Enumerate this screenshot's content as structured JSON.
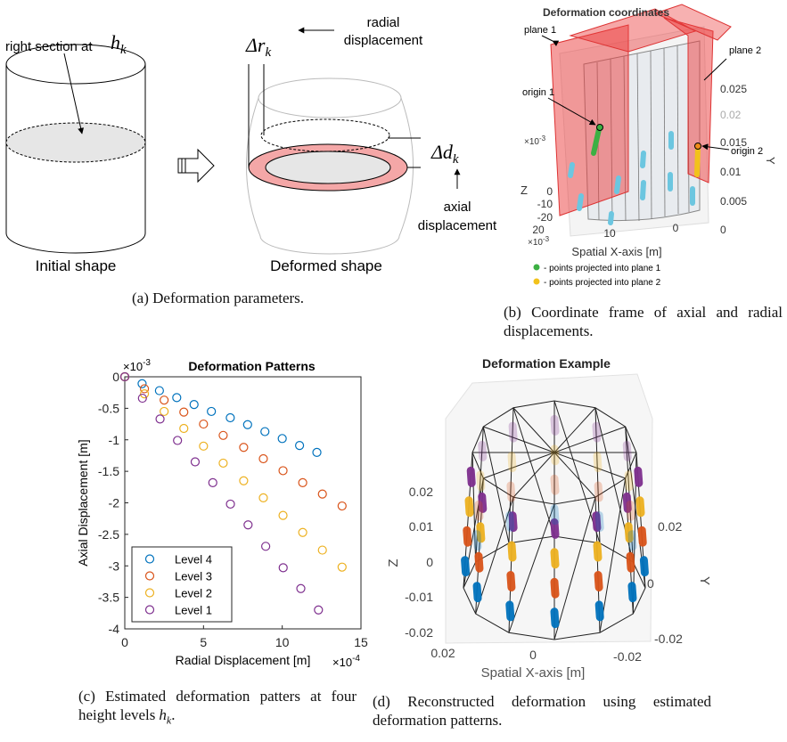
{
  "panel_a": {
    "pointer_label": "right section at",
    "section_height": {
      "base": "h",
      "sub": "k"
    },
    "radial_symbol": {
      "base": "Δr",
      "sub": "k"
    },
    "radial_label": [
      "radial",
      "displacement"
    ],
    "axial_symbol": {
      "base": "Δd",
      "sub": "k"
    },
    "axial_label": [
      "axial",
      "displacement"
    ],
    "initial_label": "Initial shape",
    "deformed_label": "Deformed shape",
    "caption": "(a) Deformation parameters."
  },
  "panel_b": {
    "title": "Deformation coordinates",
    "annotations": [
      "plane 1",
      "plane 2",
      "origin 1",
      "origin 2"
    ],
    "y_ticks": [
      "0.025",
      "0.02",
      "0.015",
      "0.01",
      "0.005",
      "0"
    ],
    "y_label": "Y",
    "z_ticks": [
      "0",
      "-10",
      "-20"
    ],
    "z_label": "Z",
    "z_scale": {
      "base": "×10",
      "exp": "-3"
    },
    "x_ticks": [
      "20",
      "10",
      "0"
    ],
    "x_scale": {
      "base": "×10",
      "exp": "-3"
    },
    "x_label": "Spatial X-axis [m]",
    "legend": [
      "- points projected into plane 1",
      "- points projected into plane 2"
    ],
    "caption": "(b) Coordinate frame of axial and radial displacements."
  },
  "chart_data": {
    "type": "scatter",
    "title": "Deformation Patterns",
    "x_label": "Radial Displacement [m]",
    "y_label": "Axial Displacement [m]",
    "x_scale": {
      "base": "×10",
      "exp": "-4"
    },
    "y_scale": {
      "base": "×10",
      "exp": "-3"
    },
    "xlim": [
      0,
      15
    ],
    "ylim": [
      -4,
      0
    ],
    "xticks": [
      0,
      5,
      10,
      15
    ],
    "yticks": [
      0,
      -0.5,
      -1,
      -1.5,
      -2,
      -2.5,
      -3,
      -3.5,
      -4
    ],
    "legend": "lower left",
    "series": [
      {
        "name": "Level 4",
        "color": "#0072bd",
        "x": [
          0,
          1.1,
          2.2,
          3.3,
          4.4,
          5.5,
          6.7,
          7.8,
          8.9,
          10.0,
          11.1,
          12.2
        ],
        "values": [
          0,
          -0.11,
          -0.22,
          -0.33,
          -0.44,
          -0.55,
          -0.65,
          -0.76,
          -0.87,
          -0.98,
          -1.09,
          -1.2
        ]
      },
      {
        "name": "Level 3",
        "color": "#d95319",
        "x": [
          0,
          1.25,
          2.5,
          3.75,
          5.0,
          6.25,
          7.55,
          8.8,
          10.05,
          11.3,
          12.55,
          13.8
        ],
        "values": [
          0,
          -0.19,
          -0.37,
          -0.56,
          -0.75,
          -0.93,
          -1.12,
          -1.3,
          -1.49,
          -1.68,
          -1.86,
          -2.05
        ]
      },
      {
        "name": "Level 2",
        "color": "#edb120",
        "x": [
          0,
          1.25,
          2.5,
          3.75,
          5.0,
          6.25,
          7.55,
          8.8,
          10.05,
          11.3,
          12.55,
          13.8
        ],
        "values": [
          0,
          -0.27,
          -0.55,
          -0.82,
          -1.1,
          -1.37,
          -1.65,
          -1.92,
          -2.2,
          -2.47,
          -2.75,
          -3.02
        ]
      },
      {
        "name": "Level 1",
        "color": "#7e2f8e",
        "x": [
          0,
          1.12,
          2.24,
          3.35,
          4.47,
          5.59,
          6.71,
          7.83,
          8.95,
          10.06,
          11.18,
          12.3
        ],
        "values": [
          0,
          -0.34,
          -0.67,
          -1.01,
          -1.35,
          -1.68,
          -2.02,
          -2.35,
          -2.69,
          -3.03,
          -3.36,
          -3.7
        ]
      }
    ],
    "caption": "(c) Estimated deformation patters at four height levels",
    "caption_math": {
      "base": "h",
      "sub": "k"
    },
    "caption_end": "."
  },
  "panel_d": {
    "title": "Deformation Example",
    "z_ticks": [
      "0.02",
      "0.01",
      "0",
      "-0.01",
      "-0.02"
    ],
    "z_label": "Z",
    "y_ticks": [
      "0.02",
      "0",
      "-0.02"
    ],
    "y_label": "Y",
    "x_ticks": [
      "0.02",
      "0",
      "-0.02"
    ],
    "x_label": "Spatial X-axis [m]",
    "caption": "(d) Reconstructed deformation using estimated deformation patterns."
  }
}
